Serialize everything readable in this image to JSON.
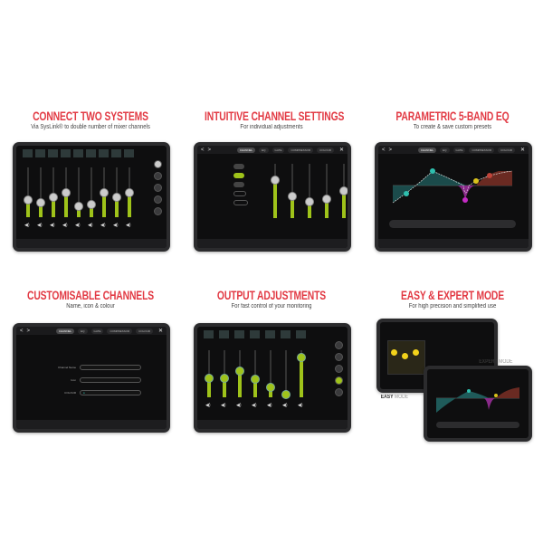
{
  "panels": [
    {
      "title": "CONNECT TWO SYSTEMS",
      "subtitle": "Via SysLink® to double number of mixer channels"
    },
    {
      "title": "INTUITIVE CHANNEL SETTINGS",
      "subtitle": "For individual adjustments"
    },
    {
      "title": "PARAMETRIC 5-BAND EQ",
      "subtitle": "To create & save custom presets"
    },
    {
      "title": "CUSTOMISABLE CHANNELS",
      "subtitle": "Name, icon & colour"
    },
    {
      "title": "OUTPUT ADJUSTMENTS",
      "subtitle": "For fast control of your monitoring"
    },
    {
      "title": "EASY & EXPERT MODE",
      "subtitle": "For high precision and simplified use"
    }
  ],
  "modes": {
    "expert_bold": "EXPERT",
    "easy_bold": "EASY",
    "mode_word": "MODE"
  },
  "screen": {
    "tabs": [
      "CHANNEL",
      "EQ",
      "GATE",
      "COMPRESSOR",
      "COLOUR"
    ],
    "back": "<",
    "forward": ">",
    "close": "✕"
  },
  "custom": {
    "fields": [
      {
        "label": "Channel Name"
      },
      {
        "label": "Icon"
      },
      {
        "label": "COLOUR"
      }
    ]
  },
  "mixer_levels": [
    0.35,
    0.3,
    0.4,
    0.5,
    0.22,
    0.25,
    0.5,
    0.4,
    0.5
  ],
  "channel_fader_levels": [
    0.7,
    0.4,
    0.3,
    0.35,
    0.5
  ],
  "output_levels": [
    0.4,
    0.4,
    0.55,
    0.38,
    0.22,
    0.05,
    0.85
  ],
  "colors": {
    "accent": "#9fc31a",
    "title": "#e23a44",
    "eq_teal": "#2fbfae",
    "eq_magenta": "#c42bc4",
    "eq_red": "#c0443a"
  }
}
